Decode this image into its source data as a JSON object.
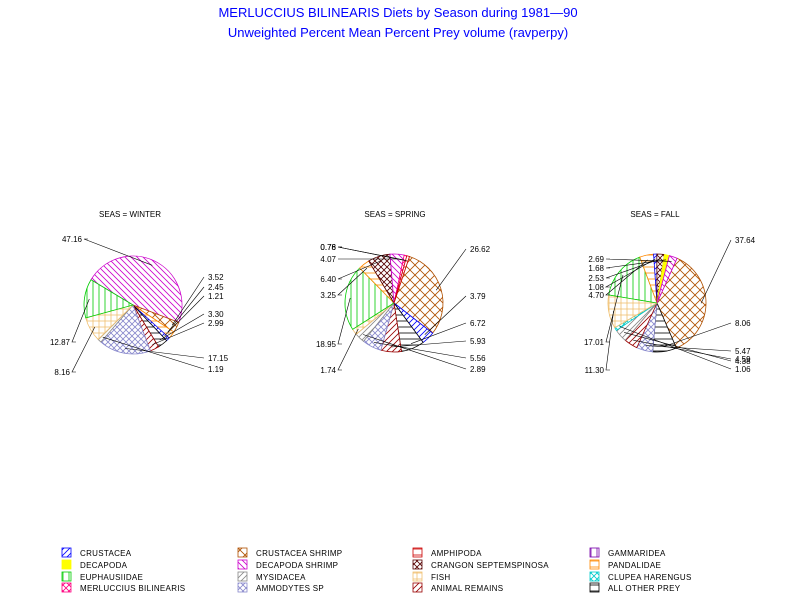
{
  "title_line1": "MERLUCCIUS BILINEARIS Diets by Season during 1981—90",
  "title_line2": "Unweighted Percent Mean Percent Prey  volume (ravperpy)",
  "chart_data": {
    "type": "pie",
    "legend_placement": "bottom",
    "categories": [
      {
        "name": "CRUSTACEA",
        "color": "#0000ff",
        "pattern": "diag-right"
      },
      {
        "name": "CRUSTACEA SHRIMP",
        "color": "#b05000",
        "pattern": "crosshatch"
      },
      {
        "name": "AMPHIPODA",
        "color": "#cc0000",
        "pattern": "horizontal"
      },
      {
        "name": "GAMMARIDEA",
        "color": "#7700aa",
        "pattern": "vertical"
      },
      {
        "name": "DECAPODA",
        "color": "#ffff00",
        "pattern": "solid"
      },
      {
        "name": "DECAPODA SHRIMP",
        "color": "#cc00cc",
        "pattern": "diag-left"
      },
      {
        "name": "CRANGON SEPTEMSPINOSA",
        "color": "#550000",
        "pattern": "crosshatch-x"
      },
      {
        "name": "PANDALIDAE",
        "color": "#ff8800",
        "pattern": "horizontal"
      },
      {
        "name": "EUPHAUSIIDAE",
        "color": "#00cc00",
        "pattern": "vertical"
      },
      {
        "name": "MYSIDACEA",
        "color": "#888888",
        "pattern": "diag-right"
      },
      {
        "name": "FISH",
        "color": "#f0c070",
        "pattern": "grid"
      },
      {
        "name": "CLUPEA HARENGUS",
        "color": "#00cccc",
        "pattern": "crosshatch-x"
      },
      {
        "name": "MERLUCCIUS BILINEARIS",
        "color": "#ff0080",
        "pattern": "crosshatch-x"
      },
      {
        "name": "AMMODYTES SP",
        "color": "#8888cc",
        "pattern": "crosshatch-x"
      },
      {
        "name": "ANIMAL REMAINS",
        "color": "#990000",
        "pattern": "diag-right"
      },
      {
        "name": "ALL OTHER PREY",
        "color": "#000000",
        "pattern": "horizontal"
      }
    ],
    "pies": [
      {
        "title": "SEAS = WINTER",
        "slices": [
          {
            "category": "DECAPODA SHRIMP",
            "value": 47.16
          },
          {
            "category": "CRUSTACEA SHRIMP",
            "value": 3.52
          },
          {
            "category": "PANDALIDAE",
            "value": 2.45
          },
          {
            "category": "CRUSTACEA",
            "value": 1.21
          },
          {
            "category": "ALL OTHER PREY",
            "value": 3.3
          },
          {
            "category": "ANIMAL REMAINS",
            "value": 2.99
          },
          {
            "category": "AMMODYTES SP",
            "value": 17.15
          },
          {
            "category": "MYSIDACEA",
            "value": 1.19
          },
          {
            "category": "FISH",
            "value": 8.16
          },
          {
            "category": "EUPHAUSIIDAE",
            "value": 12.87
          }
        ]
      },
      {
        "title": "SEAS = SPRING",
        "slices": [
          {
            "category": "CRUSTACEA SHRIMP",
            "value": 26.62
          },
          {
            "category": "CRUSTACEA",
            "value": 3.79
          },
          {
            "category": "ALL OTHER PREY",
            "value": 6.72
          },
          {
            "category": "ANIMAL REMAINS",
            "value": 5.93
          },
          {
            "category": "AMMODYTES SP",
            "value": 5.56
          },
          {
            "category": "MYSIDACEA",
            "value": 2.89
          },
          {
            "category": "FISH",
            "value": 1.74
          },
          {
            "category": "EUPHAUSIIDAE",
            "value": 18.95
          },
          {
            "category": "PANDALIDAE",
            "value": 3.25
          },
          {
            "category": "CRANGON SEPTEMSPINOSA",
            "value": 6.4
          },
          {
            "category": "DECAPODA SHRIMP",
            "value": 4.07
          },
          {
            "category": "MERLUCCIUS BILINEARIS",
            "value": 0.76
          },
          {
            "category": "AMPHIPODA",
            "value": 0.78
          }
        ]
      },
      {
        "title": "SEAS = FALL",
        "slices": [
          {
            "category": "CRUSTACEA SHRIMP",
            "value": 37.64
          },
          {
            "category": "ALL OTHER PREY",
            "value": 8.06
          },
          {
            "category": "AMMODYTES SP",
            "value": 5.47
          },
          {
            "category": "ANIMAL REMAINS",
            "value": 4.59
          },
          {
            "category": "MYSIDACEA",
            "value": 4.38
          },
          {
            "category": "CLUPEA HARENGUS",
            "value": 1.06
          },
          {
            "category": "FISH",
            "value": 11.3
          },
          {
            "category": "EUPHAUSIIDAE",
            "value": 17.01
          },
          {
            "category": "PANDALIDAE",
            "value": 4.7
          },
          {
            "category": "CRUSTACEA",
            "value": 1.08
          },
          {
            "category": "CRANGON SEPTEMSPINOSA",
            "value": 2.53
          },
          {
            "category": "DECAPODA",
            "value": 1.68
          },
          {
            "category": "DECAPODA SHRIMP",
            "value": 2.69
          }
        ]
      }
    ]
  }
}
